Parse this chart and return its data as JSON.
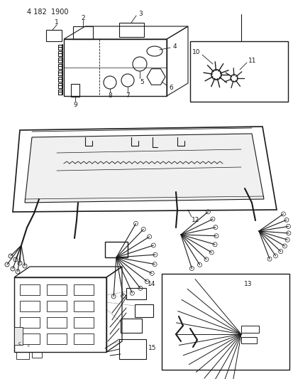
{
  "page_label": "4 182  1900",
  "bg_color": "#ffffff",
  "lc": "#1a1a1a",
  "figsize": [
    4.14,
    5.33
  ],
  "dpi": 100
}
